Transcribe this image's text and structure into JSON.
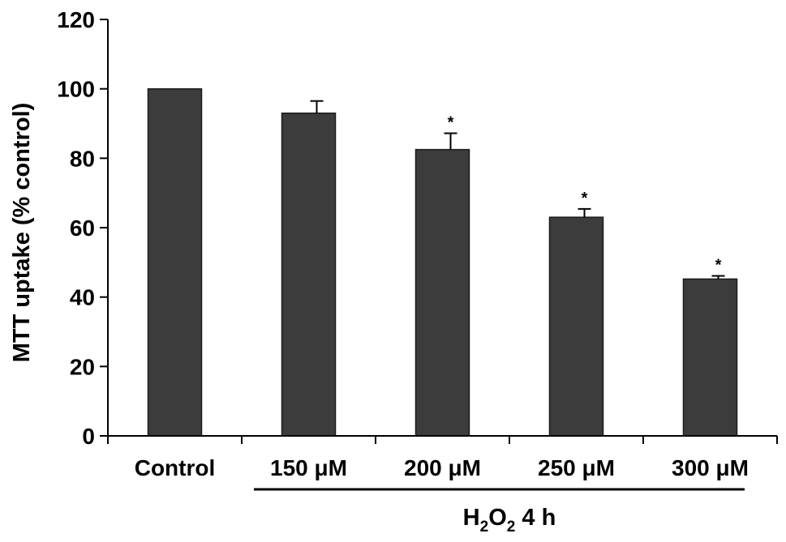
{
  "chart_data": {
    "type": "bar",
    "title": "",
    "ylabel": "MTT uptake (% control)",
    "group_label": {
      "prefix": "H",
      "sub": "2",
      "middle": "O",
      "sub2": "2",
      "suffix": " 4 h"
    },
    "categories": [
      "Control",
      "150 μM",
      "200 μM",
      "250 μM",
      "300 μM"
    ],
    "values": [
      100,
      93,
      82.5,
      63,
      45.2
    ],
    "errors": [
      0,
      3.5,
      4.7,
      2.4,
      0.9
    ],
    "significance": [
      "",
      "",
      "*",
      "*",
      "*"
    ],
    "ylim": [
      0,
      120
    ],
    "yticks": [
      0,
      20,
      40,
      60,
      80,
      100,
      120
    ],
    "grid": false,
    "colors": {
      "bar": "#3c3c3c",
      "axis": "#000000"
    }
  }
}
